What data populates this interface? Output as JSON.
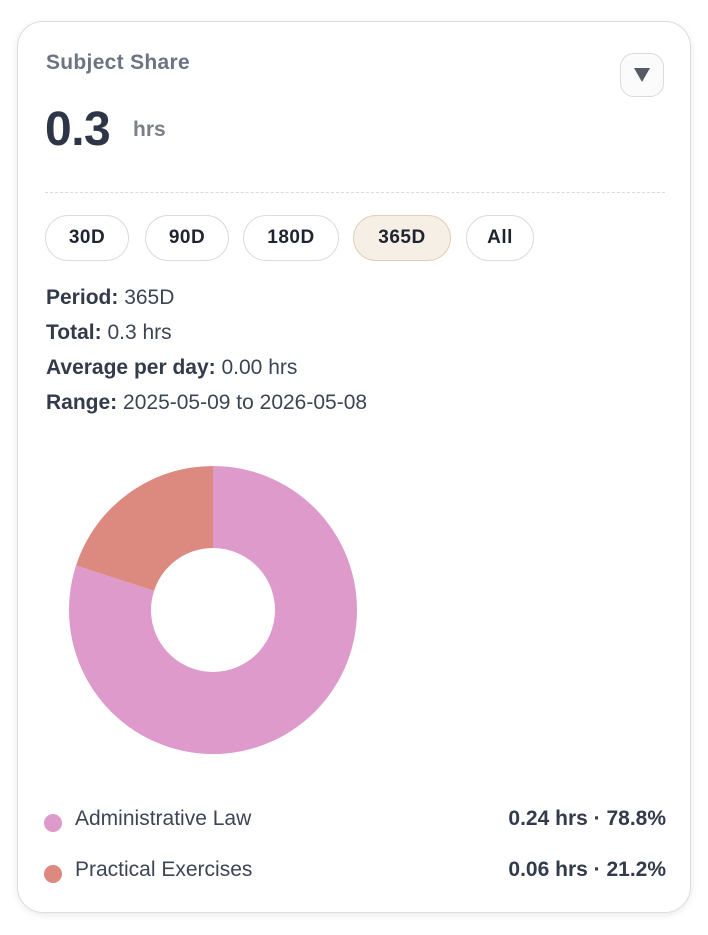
{
  "card": {
    "title": "Subject Share",
    "value": "0.3",
    "unit": "hrs"
  },
  "range_buttons": [
    {
      "label": "30D",
      "active": false
    },
    {
      "label": "90D",
      "active": false
    },
    {
      "label": "180D",
      "active": false
    },
    {
      "label": "365D",
      "active": true
    },
    {
      "label": "All",
      "active": false
    }
  ],
  "info": {
    "period_label": "Period:",
    "period_value": "365D",
    "total_label": "Total:",
    "total_value": "0.3 hrs",
    "avg_label": "Average per day:",
    "avg_value": "0.00 hrs",
    "range_label": "Range:",
    "range_value": "2025-05-09 to 2026-05-08"
  },
  "legend": [
    {
      "label": "Administrative Law",
      "value": "0.24 hrs · 78.8%",
      "color": "#dd9acb"
    },
    {
      "label": "Practical Exercises",
      "value": "0.06 hrs · 21.2%",
      "color": "#dc8980"
    }
  ],
  "chart_data": {
    "type": "pie",
    "donut": true,
    "title": "",
    "categories": [
      "Administrative Law",
      "Practical Exercises"
    ],
    "values": [
      0.24,
      0.06
    ],
    "percentages": [
      78.8,
      21.2
    ],
    "colors": [
      "#dd9acb",
      "#dc8980"
    ],
    "start_angle": "12 o'clock",
    "direction": "clockwise"
  }
}
